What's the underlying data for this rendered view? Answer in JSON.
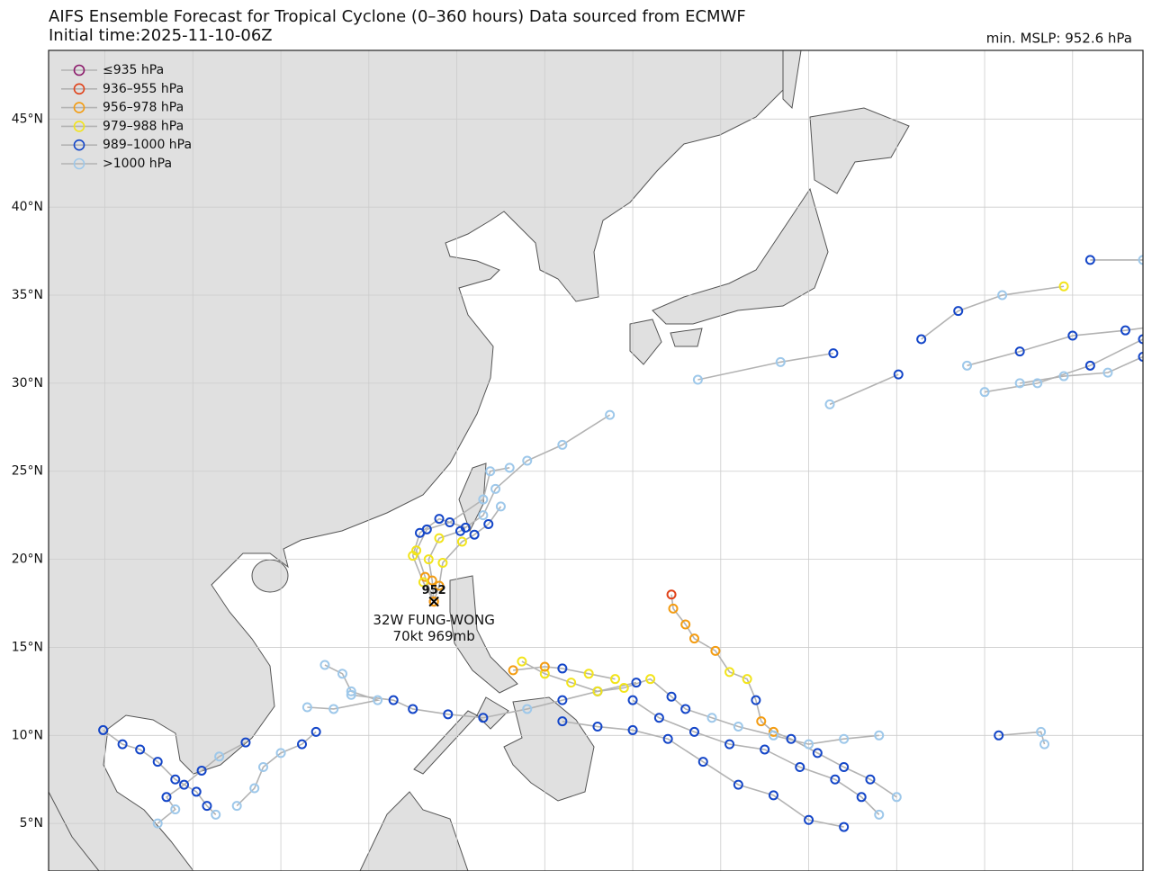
{
  "header": {
    "title": "AIFS Ensemble Forecast for Tropical Cyclone (0–360 hours) Data sourced from ECMWF",
    "initial_time": "Initial time:2025-11-10-06Z",
    "min_mslp": "min. MSLP: 952.6 hPa"
  },
  "map": {
    "lonlim": [
      96.8,
      159
    ],
    "latlim": [
      2.3,
      48.9
    ],
    "lat_ticks": [
      {
        "value": 5,
        "label": "5°N"
      },
      {
        "value": 10,
        "label": "10°N"
      },
      {
        "value": 15,
        "label": "15°N"
      },
      {
        "value": 20,
        "label": "20°N"
      },
      {
        "value": 25,
        "label": "25°N"
      },
      {
        "value": 30,
        "label": "30°N"
      },
      {
        "value": 35,
        "label": "35°N"
      },
      {
        "value": 40,
        "label": "40°N"
      },
      {
        "value": 45,
        "label": "45°N"
      }
    ],
    "lon_grid": [
      100,
      105,
      110,
      115,
      120,
      125,
      130,
      135,
      140,
      145,
      150,
      155
    ]
  },
  "legend": [
    {
      "label": "≤935 hPa",
      "color": "#8b1a6b"
    },
    {
      "label": "936–955 hPa",
      "color": "#e0431b"
    },
    {
      "label": "956–978 hPa",
      "color": "#f39c12"
    },
    {
      "label": "979–988 hPa",
      "color": "#f2e41c"
    },
    {
      "label": "989–1000 hPa",
      "color": "#1446c8"
    },
    {
      "label": ">1000 hPa",
      "color": "#9ec8ea"
    }
  ],
  "storm": {
    "lon": 118.7,
    "lat": 17.6,
    "min_label": 952,
    "name": "32W FUNG-WONG",
    "intensity": "70kt 969mb"
  },
  "tracks": [
    {
      "points": [
        {
          "lon": 118.7,
          "lat": 17.6,
          "c": 2
        },
        {
          "lon": 118.6,
          "lat": 18.8,
          "c": 2
        },
        {
          "lon": 118.4,
          "lat": 20.0,
          "c": 3
        },
        {
          "lon": 119.0,
          "lat": 21.2,
          "c": 3
        },
        {
          "lon": 120.2,
          "lat": 21.6,
          "c": 4
        },
        {
          "lon": 121.5,
          "lat": 22.5,
          "c": 5
        },
        {
          "lon": 122.2,
          "lat": 24.0,
          "c": 5
        },
        {
          "lon": 124.0,
          "lat": 25.6,
          "c": 5
        },
        {
          "lon": 126.0,
          "lat": 26.5,
          "c": 5
        },
        {
          "lon": 128.7,
          "lat": 28.2,
          "c": 5
        }
      ]
    },
    {
      "points": [
        {
          "lon": 118.7,
          "lat": 17.6,
          "c": 2
        },
        {
          "lon": 118.2,
          "lat": 19.0,
          "c": 2
        },
        {
          "lon": 117.7,
          "lat": 20.5,
          "c": 3
        },
        {
          "lon": 118.3,
          "lat": 21.7,
          "c": 4
        },
        {
          "lon": 119.6,
          "lat": 22.1,
          "c": 4
        },
        {
          "lon": 121.5,
          "lat": 23.4,
          "c": 5
        },
        {
          "lon": 121.9,
          "lat": 25.0,
          "c": 5
        },
        {
          "lon": 123.0,
          "lat": 25.2,
          "c": 5
        }
      ]
    },
    {
      "points": [
        {
          "lon": 118.7,
          "lat": 17.6,
          "c": 1
        },
        {
          "lon": 119.0,
          "lat": 18.5,
          "c": 2
        },
        {
          "lon": 119.2,
          "lat": 19.8,
          "c": 3
        },
        {
          "lon": 120.3,
          "lat": 21.0,
          "c": 3
        },
        {
          "lon": 121.0,
          "lat": 21.4,
          "c": 4
        },
        {
          "lon": 121.8,
          "lat": 22.0,
          "c": 4
        },
        {
          "lon": 122.5,
          "lat": 23.0,
          "c": 5
        }
      ]
    },
    {
      "points": [
        {
          "lon": 118.7,
          "lat": 17.6,
          "c": 2
        },
        {
          "lon": 118.1,
          "lat": 18.7,
          "c": 3
        },
        {
          "lon": 117.5,
          "lat": 20.2,
          "c": 3
        },
        {
          "lon": 117.9,
          "lat": 21.5,
          "c": 4
        },
        {
          "lon": 119.0,
          "lat": 22.3,
          "c": 4
        },
        {
          "lon": 120.5,
          "lat": 21.8,
          "c": 4
        }
      ]
    },
    {
      "points": [
        {
          "lon": 130.2,
          "lat": 13.0,
          "c": 4
        },
        {
          "lon": 128.0,
          "lat": 12.5,
          "c": 4
        },
        {
          "lon": 126.0,
          "lat": 12.0,
          "c": 4
        },
        {
          "lon": 124.0,
          "lat": 11.5,
          "c": 5
        },
        {
          "lon": 121.5,
          "lat": 11.0,
          "c": 4
        },
        {
          "lon": 119.5,
          "lat": 11.2,
          "c": 4
        },
        {
          "lon": 117.5,
          "lat": 11.5,
          "c": 4
        },
        {
          "lon": 116.4,
          "lat": 12.0,
          "c": 4
        },
        {
          "lon": 114.0,
          "lat": 12.3,
          "c": 5
        }
      ]
    },
    {
      "points": [
        {
          "lon": 132.2,
          "lat": 18.0,
          "c": 1
        },
        {
          "lon": 132.3,
          "lat": 17.2,
          "c": 2
        },
        {
          "lon": 133.0,
          "lat": 16.3,
          "c": 2
        },
        {
          "lon": 133.5,
          "lat": 15.5,
          "c": 2
        },
        {
          "lon": 134.7,
          "lat": 14.8,
          "c": 2
        },
        {
          "lon": 135.5,
          "lat": 13.6,
          "c": 3
        },
        {
          "lon": 136.5,
          "lat": 13.2,
          "c": 3
        },
        {
          "lon": 137.0,
          "lat": 12.0,
          "c": 4
        },
        {
          "lon": 137.3,
          "lat": 10.8,
          "c": 2
        },
        {
          "lon": 138.0,
          "lat": 10.2,
          "c": 2
        },
        {
          "lon": 139.0,
          "lat": 9.8,
          "c": 4
        },
        {
          "lon": 140.5,
          "lat": 9.0,
          "c": 4
        },
        {
          "lon": 142.0,
          "lat": 8.2,
          "c": 4
        },
        {
          "lon": 143.5,
          "lat": 7.5,
          "c": 4
        },
        {
          "lon": 145.0,
          "lat": 6.5,
          "c": 5
        }
      ]
    },
    {
      "points": [
        {
          "lon": 123.7,
          "lat": 14.2,
          "c": 3
        },
        {
          "lon": 125.0,
          "lat": 13.5,
          "c": 3
        },
        {
          "lon": 126.5,
          "lat": 13.0,
          "c": 3
        },
        {
          "lon": 128.0,
          "lat": 12.5,
          "c": 3
        },
        {
          "lon": 129.5,
          "lat": 12.7,
          "c": 3
        },
        {
          "lon": 131.0,
          "lat": 13.2,
          "c": 3
        },
        {
          "lon": 132.2,
          "lat": 12.2,
          "c": 4
        },
        {
          "lon": 133.0,
          "lat": 11.5,
          "c": 4
        },
        {
          "lon": 134.5,
          "lat": 11.0,
          "c": 5
        },
        {
          "lon": 136.0,
          "lat": 10.5,
          "c": 5
        },
        {
          "lon": 138.0,
          "lat": 10.0,
          "c": 5
        },
        {
          "lon": 140.0,
          "lat": 9.5,
          "c": 5
        },
        {
          "lon": 142.0,
          "lat": 9.8,
          "c": 5
        },
        {
          "lon": 144.0,
          "lat": 10.0,
          "c": 5
        }
      ]
    },
    {
      "points": [
        {
          "lon": 130.0,
          "lat": 12.0,
          "c": 4
        },
        {
          "lon": 131.5,
          "lat": 11.0,
          "c": 4
        },
        {
          "lon": 133.5,
          "lat": 10.2,
          "c": 4
        },
        {
          "lon": 135.5,
          "lat": 9.5,
          "c": 4
        },
        {
          "lon": 137.5,
          "lat": 9.2,
          "c": 4
        },
        {
          "lon": 139.5,
          "lat": 8.2,
          "c": 4
        },
        {
          "lon": 141.5,
          "lat": 7.5,
          "c": 4
        },
        {
          "lon": 143.0,
          "lat": 6.5,
          "c": 4
        },
        {
          "lon": 144.0,
          "lat": 5.5,
          "c": 5
        }
      ]
    },
    {
      "points": [
        {
          "lon": 126.0,
          "lat": 10.8,
          "c": 4
        },
        {
          "lon": 128.0,
          "lat": 10.5,
          "c": 4
        },
        {
          "lon": 130.0,
          "lat": 10.3,
          "c": 4
        },
        {
          "lon": 132.0,
          "lat": 9.8,
          "c": 4
        },
        {
          "lon": 134.0,
          "lat": 8.5,
          "c": 4
        },
        {
          "lon": 136.0,
          "lat": 7.2,
          "c": 4
        },
        {
          "lon": 138.0,
          "lat": 6.6,
          "c": 4
        },
        {
          "lon": 140.0,
          "lat": 5.2,
          "c": 4
        },
        {
          "lon": 142.0,
          "lat": 4.8,
          "c": 4
        }
      ]
    },
    {
      "points": [
        {
          "lon": 99.9,
          "lat": 10.3,
          "c": 4
        },
        {
          "lon": 101.0,
          "lat": 9.5,
          "c": 4
        },
        {
          "lon": 102.0,
          "lat": 9.2,
          "c": 4
        },
        {
          "lon": 103.0,
          "lat": 8.5,
          "c": 4
        },
        {
          "lon": 104.0,
          "lat": 7.5,
          "c": 4
        },
        {
          "lon": 105.2,
          "lat": 6.8,
          "c": 4
        },
        {
          "lon": 105.8,
          "lat": 6.0,
          "c": 4
        },
        {
          "lon": 106.3,
          "lat": 5.5,
          "c": 5
        }
      ]
    },
    {
      "points": [
        {
          "lon": 108.0,
          "lat": 9.6,
          "c": 4
        },
        {
          "lon": 106.5,
          "lat": 8.8,
          "c": 5
        },
        {
          "lon": 105.5,
          "lat": 8.0,
          "c": 4
        },
        {
          "lon": 104.5,
          "lat": 7.2,
          "c": 4
        },
        {
          "lon": 103.5,
          "lat": 6.5,
          "c": 4
        },
        {
          "lon": 104.0,
          "lat": 5.8,
          "c": 5
        },
        {
          "lon": 103.0,
          "lat": 5.0,
          "c": 5
        }
      ]
    },
    {
      "points": [
        {
          "lon": 112.0,
          "lat": 10.2,
          "c": 4
        },
        {
          "lon": 111.2,
          "lat": 9.5,
          "c": 4
        },
        {
          "lon": 110.0,
          "lat": 9.0,
          "c": 5
        },
        {
          "lon": 109.0,
          "lat": 8.2,
          "c": 5
        },
        {
          "lon": 108.5,
          "lat": 7.0,
          "c": 5
        },
        {
          "lon": 107.5,
          "lat": 6.0,
          "c": 5
        }
      ]
    },
    {
      "points": [
        {
          "lon": 112.5,
          "lat": 14.0,
          "c": 5
        },
        {
          "lon": 113.5,
          "lat": 13.5,
          "c": 5
        },
        {
          "lon": 114.0,
          "lat": 12.5,
          "c": 5
        },
        {
          "lon": 115.5,
          "lat": 12.0,
          "c": 5
        },
        {
          "lon": 113.0,
          "lat": 11.5,
          "c": 5
        },
        {
          "lon": 111.5,
          "lat": 11.6,
          "c": 5
        }
      ]
    },
    {
      "points": [
        {
          "lon": 133.7,
          "lat": 30.2,
          "c": 5
        },
        {
          "lon": 138.4,
          "lat": 31.2,
          "c": 5
        },
        {
          "lon": 141.4,
          "lat": 31.7,
          "c": 4
        }
      ]
    },
    {
      "points": [
        {
          "lon": 141.2,
          "lat": 28.8,
          "c": 5
        },
        {
          "lon": 145.1,
          "lat": 30.5,
          "c": 4
        }
      ]
    },
    {
      "points": [
        {
          "lon": 146.4,
          "lat": 32.5,
          "c": 4
        },
        {
          "lon": 148.5,
          "lat": 34.1,
          "c": 4
        },
        {
          "lon": 151.0,
          "lat": 35.0,
          "c": 5
        },
        {
          "lon": 154.5,
          "lat": 35.5,
          "c": 3
        }
      ]
    },
    {
      "points": [
        {
          "lon": 150.0,
          "lat": 29.5,
          "c": 5
        },
        {
          "lon": 153.0,
          "lat": 30.0,
          "c": 5
        },
        {
          "lon": 156.0,
          "lat": 31.0,
          "c": 4
        },
        {
          "lon": 159.0,
          "lat": 32.5,
          "c": 4
        }
      ]
    },
    {
      "points": [
        {
          "lon": 149.0,
          "lat": 31.0,
          "c": 5
        },
        {
          "lon": 152.0,
          "lat": 31.8,
          "c": 4
        },
        {
          "lon": 155.0,
          "lat": 32.7,
          "c": 4
        },
        {
          "lon": 158.0,
          "lat": 33.0,
          "c": 4
        },
        {
          "lon": 159.5,
          "lat": 33.2,
          "c": 5
        }
      ]
    },
    {
      "points": [
        {
          "lon": 152.0,
          "lat": 30.0,
          "c": 5
        },
        {
          "lon": 154.5,
          "lat": 30.4,
          "c": 5
        },
        {
          "lon": 157.0,
          "lat": 30.6,
          "c": 5
        },
        {
          "lon": 159.0,
          "lat": 31.5,
          "c": 4
        }
      ]
    },
    {
      "points": [
        {
          "lon": 156.0,
          "lat": 37.0,
          "c": 4
        },
        {
          "lon": 159.0,
          "lat": 37.0,
          "c": 5
        }
      ]
    },
    {
      "points": [
        {
          "lon": 150.8,
          "lat": 10.0,
          "c": 4
        },
        {
          "lon": 153.2,
          "lat": 10.2,
          "c": 5
        },
        {
          "lon": 153.4,
          "lat": 9.5,
          "c": 5
        }
      ]
    },
    {
      "points": [
        {
          "lon": 123.2,
          "lat": 13.7,
          "c": 2
        },
        {
          "lon": 125.0,
          "lat": 13.9,
          "c": 2
        },
        {
          "lon": 126.0,
          "lat": 13.8,
          "c": 4
        },
        {
          "lon": 127.5,
          "lat": 13.5,
          "c": 3
        },
        {
          "lon": 129.0,
          "lat": 13.2,
          "c": 3
        }
      ]
    }
  ]
}
